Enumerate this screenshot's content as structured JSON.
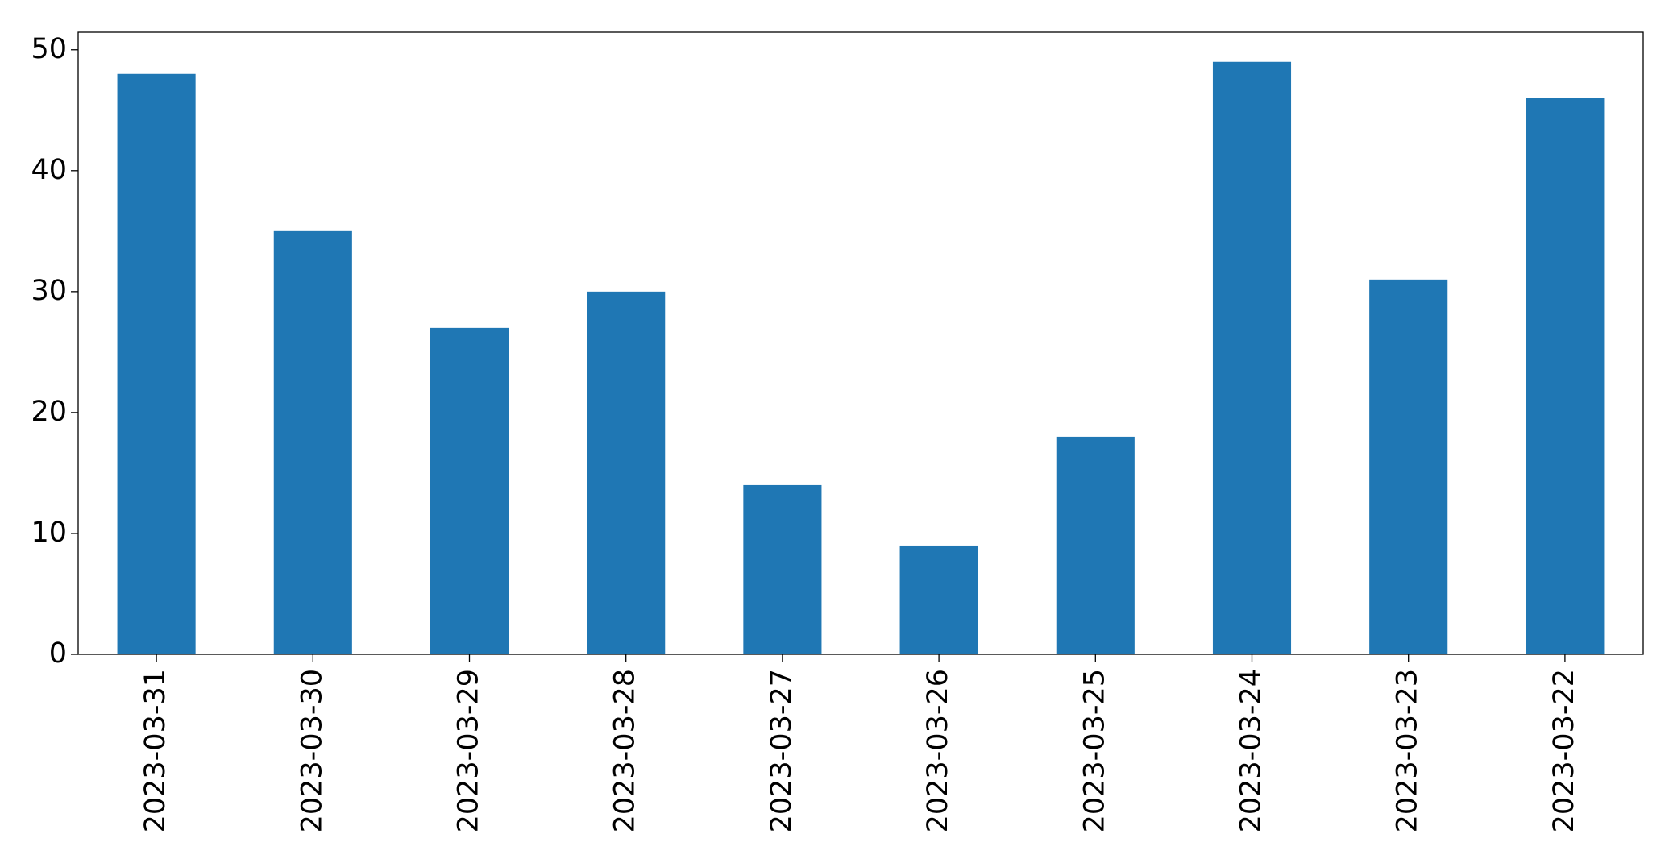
{
  "chart_data": {
    "type": "bar",
    "title": "",
    "xlabel": "",
    "ylabel": "",
    "categories": [
      "2023-03-31",
      "2023-03-30",
      "2023-03-29",
      "2023-03-28",
      "2023-03-27",
      "2023-03-26",
      "2023-03-25",
      "2023-03-24",
      "2023-03-23",
      "2023-03-22"
    ],
    "series": [
      {
        "values": [
          48,
          35,
          27,
          30,
          14,
          9,
          18,
          49,
          31,
          46
        ]
      }
    ],
    "ylim": [
      0,
      51.45
    ],
    "yticks": [
      0,
      10,
      20,
      30,
      40,
      50
    ],
    "grid": false,
    "legend": "none",
    "colors": {
      "bar": "#1f77b4",
      "axis": "#000000"
    }
  }
}
